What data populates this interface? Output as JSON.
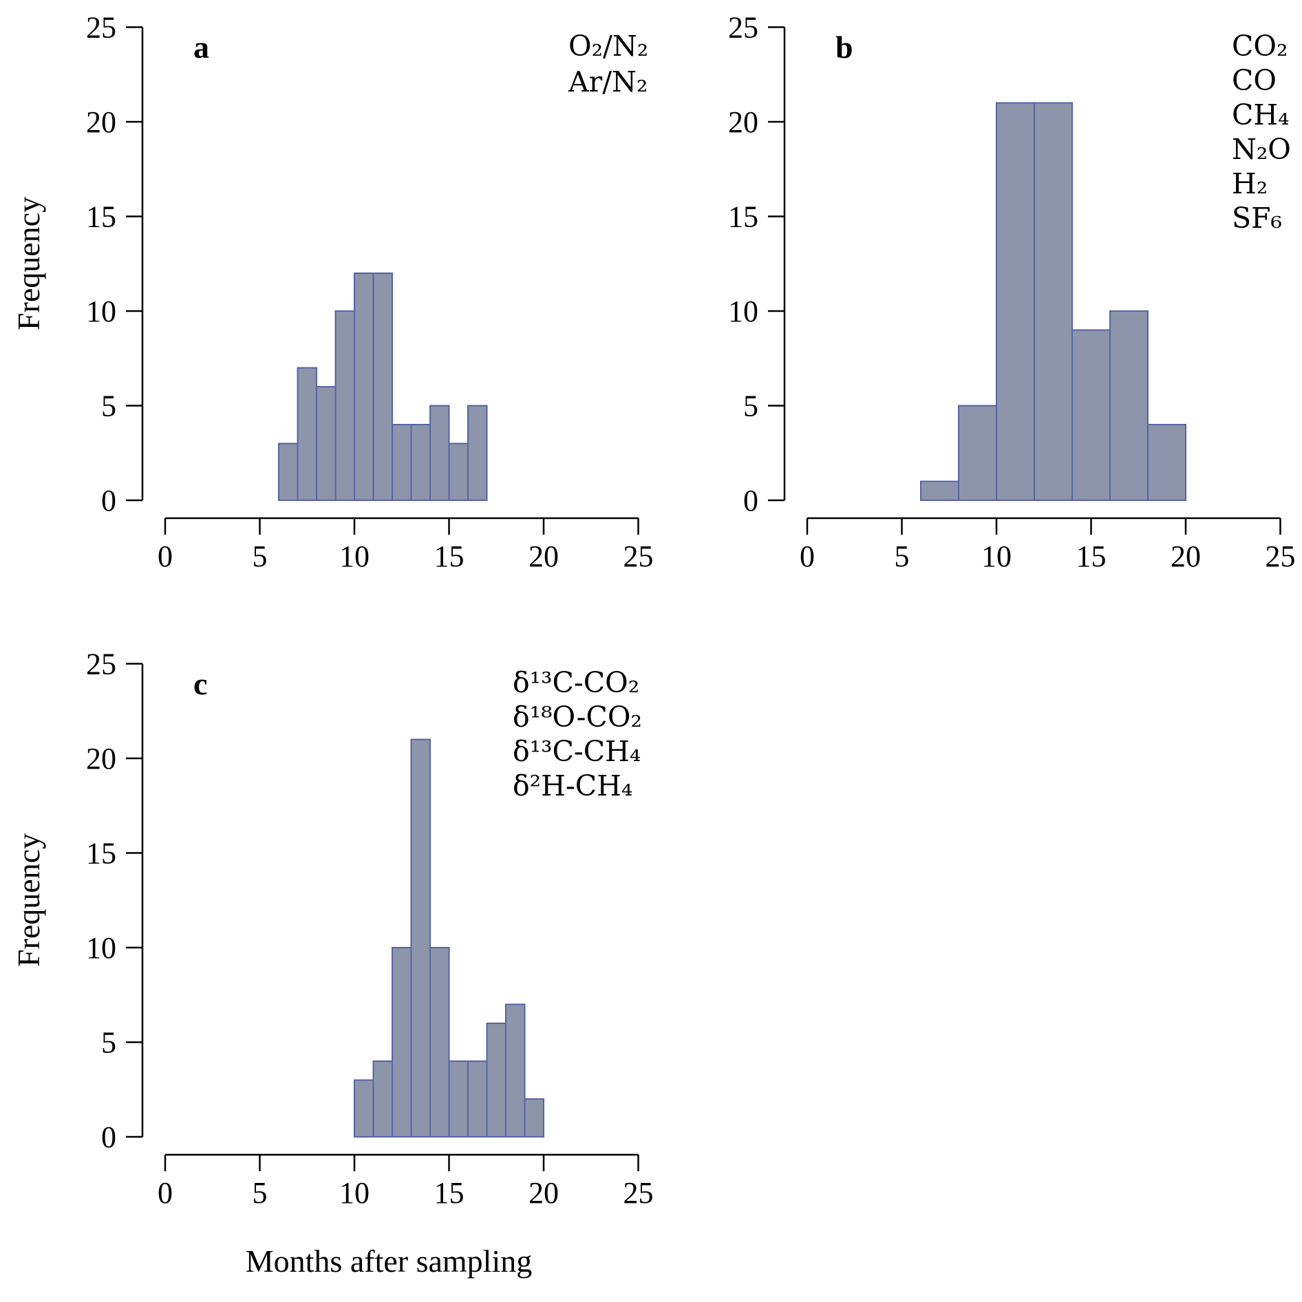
{
  "figure": {
    "xlabel": "Months after sampling",
    "ylabel": "Frequency",
    "background": "#ffffff",
    "bar_fill": "#8D95AB",
    "bar_stroke": "#5564A4",
    "axis_color": "#000000"
  },
  "chart_data": [
    {
      "type": "bar",
      "panel": "a",
      "legend": [
        "O₂/N₂",
        "Ar/N₂"
      ],
      "legend_position": "top-right",
      "bin_start": 6,
      "bin_width": 1,
      "counts": [
        3,
        7,
        6,
        10,
        12,
        12,
        4,
        4,
        5,
        3,
        5
      ],
      "xlim": [
        0,
        25
      ],
      "ylim": [
        0,
        25
      ],
      "xticks": [
        0,
        5,
        10,
        15,
        20,
        25
      ],
      "yticks": [
        0,
        5,
        10,
        15,
        20,
        25
      ],
      "grid": false
    },
    {
      "type": "bar",
      "panel": "b",
      "legend": [
        "CO₂",
        "CO",
        "CH₄",
        "N₂O",
        "H₂",
        "SF₆"
      ],
      "legend_position": "top-right",
      "bin_start": 6,
      "bin_width": 2,
      "counts": [
        1,
        5,
        21,
        21,
        9,
        10,
        4
      ],
      "xlim": [
        0,
        25
      ],
      "ylim": [
        0,
        25
      ],
      "xticks": [
        0,
        5,
        10,
        15,
        20,
        25
      ],
      "yticks": [
        0,
        5,
        10,
        15,
        20,
        25
      ],
      "grid": false
    },
    {
      "type": "bar",
      "panel": "c",
      "legend": [
        "δ¹³C-CO₂",
        "δ¹⁸O-CO₂",
        "δ¹³C-CH₄",
        "δ²H-CH₄"
      ],
      "legend_position": "top-right",
      "bin_start": 10,
      "bin_width": 1,
      "counts": [
        3,
        4,
        10,
        21,
        10,
        4,
        4,
        6,
        7,
        2
      ],
      "xlim": [
        0,
        25
      ],
      "ylim": [
        0,
        25
      ],
      "xticks": [
        0,
        5,
        10,
        15,
        20,
        25
      ],
      "yticks": [
        0,
        5,
        10,
        15,
        20,
        25
      ],
      "grid": false
    }
  ]
}
